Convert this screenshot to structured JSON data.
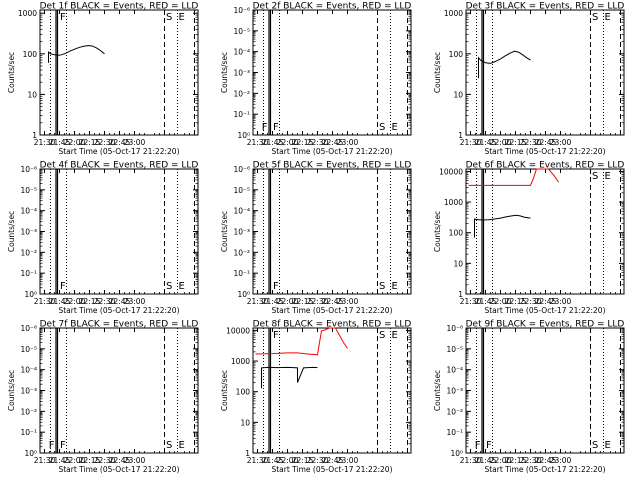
{
  "chart_data": [
    {
      "type": "line",
      "title": "Det 1f BLACK = Events, RED = LLD",
      "ylabel": "Counts/sec",
      "xlabel": "Start Time (05-Oct-17 21:22:20)",
      "x_ticks": [
        "21:30",
        "21:45",
        "22:00",
        "22:15",
        "22:30",
        "22:45",
        "23:00"
      ],
      "y_ticks": [
        "1",
        "10",
        "100",
        "1000"
      ],
      "ylim": [
        1,
        1200
      ],
      "y_scale": "log",
      "markers": [
        "F",
        "S",
        "E"
      ],
      "series": [
        {
          "color": "#000000",
          "points": [
            [
              "21:34",
              60
            ],
            [
              "21:34",
              110
            ],
            [
              "21:36",
              100
            ],
            [
              "21:40",
              95
            ],
            [
              "21:45",
              92
            ],
            [
              "21:50",
              100
            ],
            [
              "21:55",
              115
            ],
            [
              "22:00",
              130
            ],
            [
              "22:05",
              145
            ],
            [
              "22:10",
              155
            ],
            [
              "22:14",
              160
            ],
            [
              "22:18",
              155
            ],
            [
              "22:22",
              140
            ],
            [
              "22:26",
              120
            ],
            [
              "22:30",
              100
            ]
          ]
        }
      ]
    },
    {
      "type": "line",
      "title": "Det 2f BLACK = Events, RED = LLD",
      "ylabel": "Counts/sec",
      "xlabel": "Start Time (05-Oct-17 21:22:20)",
      "x_ticks": [
        "21:30",
        "21:45",
        "22:00",
        "22:15",
        "22:30",
        "22:45",
        "23:00"
      ],
      "y_ticks": [
        "10⁰",
        "10⁻¹",
        "10⁻²",
        "10⁻³",
        "10⁻⁴",
        "10⁻⁵",
        "10⁻⁶"
      ],
      "ylim": [
        1,
        1000000
      ],
      "y_scale": "log",
      "markers": [
        "F",
        "F",
        "S",
        "E"
      ],
      "series": []
    },
    {
      "type": "line",
      "title": "Det 3f BLACK = Events, RED = LLD",
      "ylabel": "Counts/sec",
      "xlabel": "Start Time (05-Oct-17 21:22:20)",
      "x_ticks": [
        "21:30",
        "21:45",
        "22:00",
        "22:15",
        "22:30",
        "22:45",
        "23:00"
      ],
      "y_ticks": [
        "1",
        "10",
        "100",
        "1000"
      ],
      "ylim": [
        1,
        1200
      ],
      "y_scale": "log",
      "markers": [
        "S",
        "E"
      ],
      "series": [
        {
          "color": "#000000",
          "points": [
            [
              "21:38",
              25
            ],
            [
              "21:38",
              80
            ],
            [
              "21:40",
              70
            ],
            [
              "21:45",
              60
            ],
            [
              "21:50",
              58
            ],
            [
              "21:55",
              65
            ],
            [
              "22:00",
              75
            ],
            [
              "22:05",
              90
            ],
            [
              "22:10",
              105
            ],
            [
              "22:14",
              115
            ],
            [
              "22:18",
              110
            ],
            [
              "22:22",
              95
            ],
            [
              "22:26",
              80
            ],
            [
              "22:30",
              70
            ]
          ]
        }
      ]
    },
    {
      "type": "line",
      "title": "Det 4f BLACK = Events, RED = LLD",
      "ylabel": "Counts/sec",
      "xlabel": "Start Time (05-Oct-17 21:22:20)",
      "x_ticks": [
        "21:30",
        "21:45",
        "22:00",
        "22:15",
        "22:30",
        "22:45",
        "23:00"
      ],
      "y_ticks": [
        "10⁰",
        "10⁻¹",
        "10⁻²",
        "10⁻³",
        "10⁻⁴",
        "10⁻⁵",
        "10⁻⁶"
      ],
      "ylim": [
        1,
        1000000
      ],
      "y_scale": "log",
      "markers": [
        "F",
        "S",
        "E"
      ],
      "series": []
    },
    {
      "type": "line",
      "title": "Det 5f BLACK = Events, RED = LLD",
      "ylabel": "Counts/sec",
      "xlabel": "Start Time (05-Oct-17 21:22:20)",
      "x_ticks": [
        "21:30",
        "21:45",
        "22:00",
        "22:15",
        "22:30",
        "22:45",
        "23:00"
      ],
      "y_ticks": [
        "10⁰",
        "10⁻¹",
        "10⁻²",
        "10⁻³",
        "10⁻⁴",
        "10⁻⁵",
        "10⁻⁶"
      ],
      "ylim": [
        1,
        1000000
      ],
      "y_scale": "log",
      "markers": [
        "F",
        "S",
        "E"
      ],
      "series": []
    },
    {
      "type": "line",
      "title": "Det 6f BLACK = Events, RED = LLD",
      "ylabel": "Counts/sec",
      "xlabel": "Start Time (05-Oct-17 21:22:20)",
      "x_ticks": [
        "21:30",
        "21:45",
        "22:00",
        "22:15",
        "22:30",
        "22:45",
        "23:00"
      ],
      "y_ticks": [
        "1",
        "10",
        "100",
        "1000",
        "10000"
      ],
      "ylim": [
        1,
        12000
      ],
      "y_scale": "log",
      "markers": [
        "S",
        "E"
      ],
      "series": [
        {
          "color": "#000000",
          "points": [
            [
              "21:34",
              70
            ],
            [
              "21:34",
              280
            ],
            [
              "21:36",
              270
            ],
            [
              "21:42",
              260
            ],
            [
              "21:48",
              265
            ],
            [
              "21:54",
              280
            ],
            [
              "22:00",
              300
            ],
            [
              "22:06",
              330
            ],
            [
              "22:12",
              360
            ],
            [
              "22:16",
              370
            ],
            [
              "22:20",
              350
            ],
            [
              "22:24",
              320
            ],
            [
              "22:30",
              300
            ]
          ]
        },
        {
          "color": "#ff0000",
          "points": [
            [
              "21:28",
              3500
            ],
            [
              "22:30",
              3500
            ],
            [
              "22:33",
              6000
            ],
            [
              "22:36",
              12000
            ],
            [
              "22:48",
              12000
            ],
            [
              "22:50",
              10000
            ],
            [
              "22:54",
              7000
            ],
            [
              "22:58",
              4500
            ]
          ]
        }
      ]
    },
    {
      "type": "line",
      "title": "Det 7f BLACK = Events, RED = LLD",
      "ylabel": "Counts/sec",
      "xlabel": "Start Time (05-Oct-17 21:22:20)",
      "x_ticks": [
        "21:30",
        "21:45",
        "22:00",
        "22:15",
        "22:30",
        "22:45",
        "23:00"
      ],
      "y_ticks": [
        "10⁰",
        "10⁻¹",
        "10⁻²",
        "10⁻³",
        "10⁻⁴",
        "10⁻⁵",
        "10⁻⁶"
      ],
      "ylim": [
        1,
        1000000
      ],
      "y_scale": "log",
      "markers": [
        "F",
        "F",
        "S",
        "E"
      ],
      "series": []
    },
    {
      "type": "line",
      "title": "Det 8f BLACK = Events, RED = LLD",
      "ylabel": "Counts/sec",
      "xlabel": "Start Time (05-Oct-17 21:22:20)",
      "x_ticks": [
        "21:30",
        "21:45",
        "22:00",
        "22:15",
        "22:30",
        "22:45",
        "23:00"
      ],
      "y_ticks": [
        "1",
        "10",
        "100",
        "1000",
        "10000"
      ],
      "ylim": [
        1,
        12000
      ],
      "y_scale": "log",
      "markers": [
        "F",
        "S",
        "E"
      ],
      "series": [
        {
          "color": "#000000",
          "points": [
            [
              "21:34",
              130
            ],
            [
              "21:34",
              600
            ],
            [
              "21:40",
              620
            ],
            [
              "21:50",
              610
            ],
            [
              "22:00",
              620
            ],
            [
              "22:06",
              610
            ],
            [
              "22:10",
              600
            ],
            [
              "22:10",
              200
            ],
            [
              "22:16",
              600
            ],
            [
              "22:20",
              610
            ],
            [
              "22:26",
              620
            ],
            [
              "22:30",
              610
            ]
          ]
        },
        {
          "color": "#ff0000",
          "points": [
            [
              "21:28",
              1700
            ],
            [
              "21:45",
              1750
            ],
            [
              "22:00",
              1850
            ],
            [
              "22:10",
              1850
            ],
            [
              "22:20",
              1700
            ],
            [
              "22:30",
              1600
            ],
            [
              "22:32",
              4000
            ],
            [
              "22:34",
              9500
            ],
            [
              "22:42",
              12000
            ],
            [
              "22:48",
              12000
            ],
            [
              "22:52",
              7000
            ],
            [
              "22:56",
              4000
            ],
            [
              "23:00",
              2600
            ]
          ]
        }
      ]
    },
    {
      "type": "line",
      "title": "Det 9f BLACK = Events, RED = LLD",
      "ylabel": "Counts/sec",
      "xlabel": "Start Time (05-Oct-17 21:22:20)",
      "x_ticks": [
        "21:30",
        "21:45",
        "22:00",
        "22:15",
        "22:30",
        "22:45",
        "23:00"
      ],
      "y_ticks": [
        "10⁰",
        "10⁻¹",
        "10⁻²",
        "10⁻³",
        "10⁻⁴",
        "10⁻⁵",
        "10⁻⁶"
      ],
      "ylim": [
        1,
        1000000
      ],
      "y_scale": "log",
      "markers": [
        "F",
        "F",
        "S",
        "E"
      ],
      "series": []
    }
  ]
}
